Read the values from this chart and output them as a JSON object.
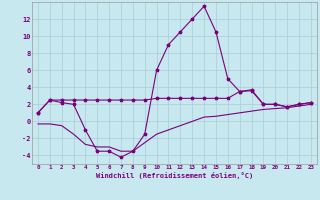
{
  "xlabel": "Windchill (Refroidissement éolien,°C)",
  "x": [
    0,
    1,
    2,
    3,
    4,
    5,
    6,
    7,
    8,
    9,
    10,
    11,
    12,
    13,
    14,
    15,
    16,
    17,
    18,
    19,
    20,
    21,
    22,
    23
  ],
  "line_flat": [
    1.0,
    2.5,
    2.5,
    2.5,
    2.5,
    2.5,
    2.5,
    2.5,
    2.5,
    2.5,
    2.7,
    2.7,
    2.7,
    2.7,
    2.7,
    2.7,
    2.7,
    3.5,
    3.7,
    2.0,
    2.0,
    1.7,
    2.0,
    2.2
  ],
  "line_peak": [
    1.0,
    2.5,
    2.2,
    2.0,
    -1.0,
    -3.5,
    -3.5,
    -4.2,
    -3.5,
    -1.5,
    6.0,
    9.0,
    10.5,
    12.0,
    13.5,
    10.5,
    5.0,
    3.5,
    3.6,
    2.0,
    2.0,
    1.7,
    2.0,
    2.2
  ],
  "line_rise": [
    -0.3,
    -0.3,
    -0.5,
    -1.5,
    -2.7,
    -3.0,
    -3.0,
    -3.5,
    -3.5,
    -2.5,
    -1.5,
    -1.0,
    -0.5,
    0.0,
    0.5,
    0.6,
    0.8,
    1.0,
    1.2,
    1.4,
    1.5,
    1.6,
    1.8,
    2.0
  ],
  "line_color": "#7b007b",
  "bg_color": "#c8e8f0",
  "grid_color": "#a8ccd8",
  "ylim": [
    -5.0,
    14.0
  ],
  "yticks": [
    -4,
    -2,
    0,
    2,
    4,
    6,
    8,
    10,
    12
  ],
  "xticks": [
    0,
    1,
    2,
    3,
    4,
    5,
    6,
    7,
    8,
    9,
    10,
    11,
    12,
    13,
    14,
    15,
    16,
    17,
    18,
    19,
    20,
    21,
    22,
    23
  ],
  "xlim": [
    -0.5,
    23.5
  ]
}
